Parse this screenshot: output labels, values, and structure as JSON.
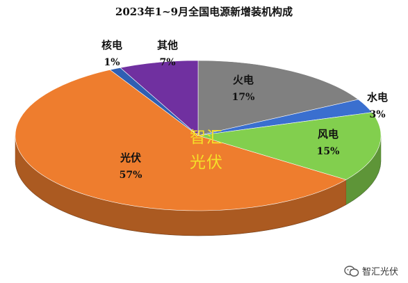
{
  "chart_data": {
    "type": "pie",
    "title": "2023年1~9月全国电源新增装机构成",
    "slices": [
      {
        "label": "火电",
        "value": 17,
        "value_text": "17%",
        "color": "#808080"
      },
      {
        "label": "水电",
        "value": 3,
        "value_text": "3%",
        "color": "#3a6fcf"
      },
      {
        "label": "风电",
        "value": 15,
        "value_text": "15%",
        "color": "#82cf4e"
      },
      {
        "label": "光伏",
        "value": 57,
        "value_text": "57%",
        "color": "#ee7d2e"
      },
      {
        "label": "核电",
        "value": 1,
        "value_text": "1%",
        "color": "#2f5fb3"
      },
      {
        "label": "其他",
        "value": 7,
        "value_text": "7%",
        "color": "#7030a0"
      }
    ]
  },
  "watermark": {
    "line1": "智汇",
    "line2": "光伏"
  },
  "footer": {
    "brand": "智汇光伏",
    "icon": "wechat-icon"
  }
}
